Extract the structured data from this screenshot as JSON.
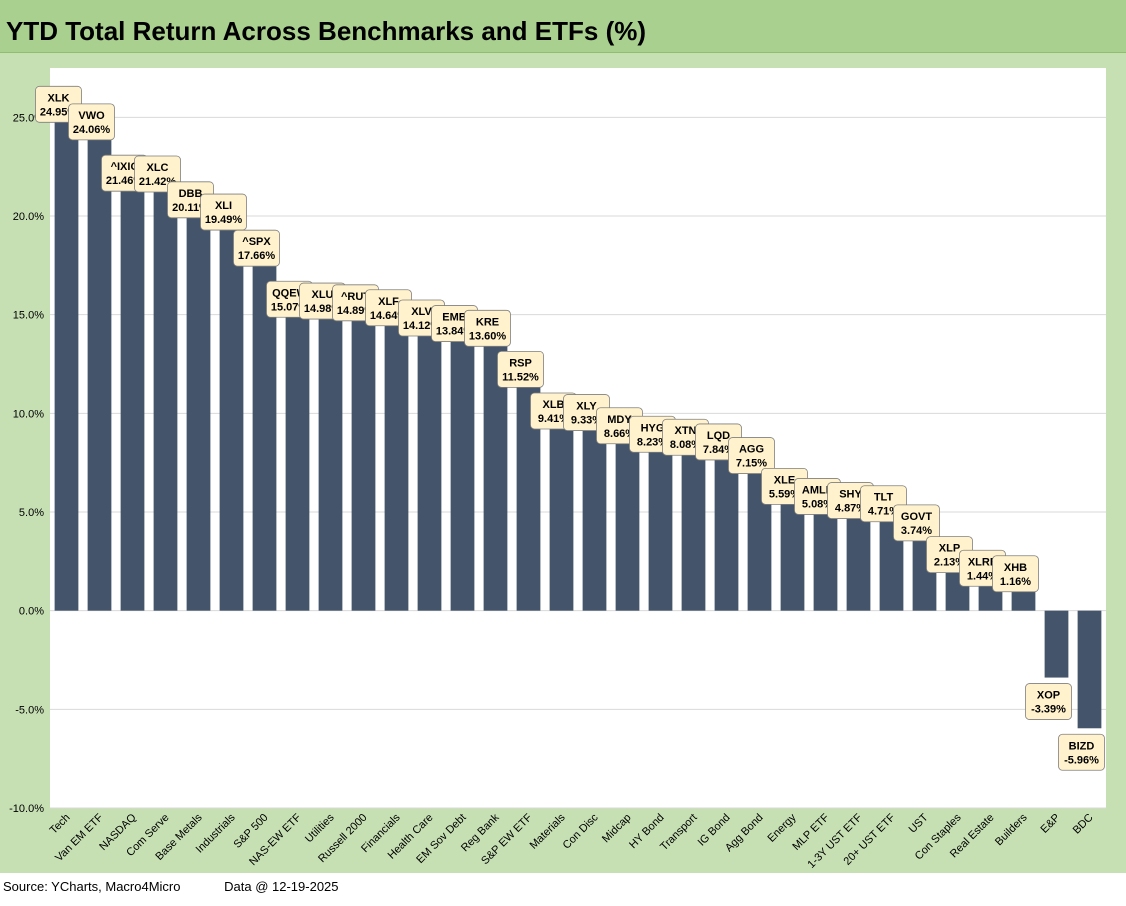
{
  "title": "YTD Total Return Across Benchmarks and ETFs (%)",
  "footer": {
    "source": "Source: YCharts, Macro4Micro",
    "date": "Data @ 12-19-2025"
  },
  "colors": {
    "bar": "#44546a",
    "label_bg": "#fff2cc",
    "frame": "#c6e0b4",
    "title_bar": "#a9d08e",
    "grid": "#d9d9d9"
  },
  "chart_data": {
    "type": "bar",
    "title": "YTD Total Return Across Benchmarks and ETFs (%)",
    "ylim": [
      -10,
      27.5
    ],
    "yticks": [
      -10,
      -5,
      0,
      5,
      10,
      15,
      20,
      25
    ],
    "ytick_labels": [
      "-10.0%",
      "-5.0%",
      "0.0%",
      "5.0%",
      "10.0%",
      "15.0%",
      "20.0%",
      "25.0%"
    ],
    "grid": true,
    "categories": [
      "Tech",
      "Van EM ETF",
      "NASDAQ",
      "Com Serve",
      "Base Metals",
      "Industrials",
      "S&P 500",
      "NAS-EW ETF",
      "Utilities",
      "Russell 2000",
      "Financials",
      "Health Care",
      "EM Sov Debt",
      "Reg Bank",
      "S&P EW ETF",
      "Materials",
      "Con Disc",
      "Midcap",
      "HY Bond",
      "Transport",
      "IG Bond",
      "Agg Bond",
      "Energy",
      "MLP ETF",
      "1-3Y UST ETF",
      "20+ UST ETF",
      "UST",
      "Con Staples",
      "Real Estate",
      "Builders",
      "E&P",
      "BDC"
    ],
    "tickers": [
      "XLK",
      "VWO",
      "^IXIC",
      "XLC",
      "DBB",
      "XLI",
      "^SPX",
      "QQEW",
      "XLU",
      "^RUT",
      "XLF",
      "XLV",
      "EMB",
      "KRE",
      "RSP",
      "XLB",
      "XLY",
      "MDY",
      "HYG",
      "XTN",
      "LQD",
      "AGG",
      "XLE",
      "AMLP",
      "SHY",
      "TLT",
      "GOVT",
      "XLP",
      "XLRE",
      "XHB",
      "XOP",
      "BIZD"
    ],
    "values": [
      24.95,
      24.06,
      21.46,
      21.42,
      20.11,
      19.49,
      17.66,
      15.07,
      14.98,
      14.89,
      14.64,
      14.12,
      13.84,
      13.6,
      11.52,
      9.41,
      9.33,
      8.66,
      8.23,
      8.08,
      7.84,
      7.15,
      5.59,
      5.08,
      4.87,
      4.71,
      3.74,
      2.13,
      1.44,
      1.16,
      -3.39,
      -5.96
    ],
    "data_labels": [
      "24.95%",
      "24.06%",
      "21.46%",
      "21.42%",
      "20.11%",
      "19.49%",
      "17.66%",
      "15.07%",
      "14.98%",
      "14.89%",
      "14.64%",
      "14.12%",
      "13.84%",
      "13.60%",
      "11.52%",
      "9.41%",
      "9.33%",
      "8.66%",
      "8.23%",
      "8.08%",
      "7.84%",
      "7.15%",
      "5.59%",
      "5.08%",
      "4.87%",
      "4.71%",
      "3.74%",
      "2.13%",
      "1.44%",
      "1.16%",
      "-3.39%",
      "-5.96%"
    ]
  }
}
